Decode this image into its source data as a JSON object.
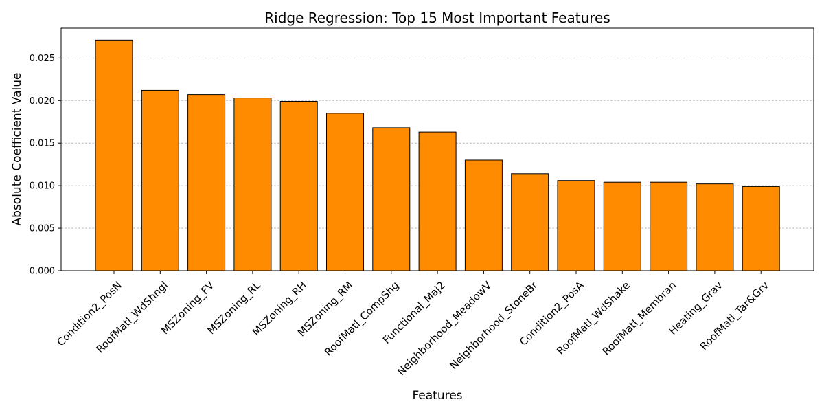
{
  "chart_data": {
    "type": "bar",
    "title": "Ridge Regression: Top 15 Most Important Features",
    "xlabel": "Features",
    "ylabel": "Absolute Coefficient Value",
    "categories": [
      "Condition2_PosN",
      "RoofMatl_WdShngl",
      "MSZoning_FV",
      "MSZoning_RL",
      "MSZoning_RH",
      "MSZoning_RM",
      "RoofMatl_CompShg",
      "Functional_Maj2",
      "Neighborhood_MeadowV",
      "Neighborhood_StoneBr",
      "Condition2_PosA",
      "RoofMatl_WdShake",
      "RoofMatl_Membran",
      "Heating_Grav",
      "RoofMatl_Tar&Grv"
    ],
    "values": [
      0.0271,
      0.0212,
      0.0207,
      0.0203,
      0.0199,
      0.0185,
      0.0168,
      0.0163,
      0.013,
      0.0114,
      0.0106,
      0.0104,
      0.0104,
      0.0102,
      0.0099
    ],
    "ylim": [
      0,
      0.0285
    ],
    "yticks": [
      "0.000",
      "0.005",
      "0.010",
      "0.015",
      "0.020",
      "0.025"
    ],
    "ytick_values": [
      0,
      0.005,
      0.01,
      0.015,
      0.02,
      0.025
    ],
    "grid": "y-dashed",
    "bar_color": "#ff8c00",
    "edge_color": "#000000"
  }
}
